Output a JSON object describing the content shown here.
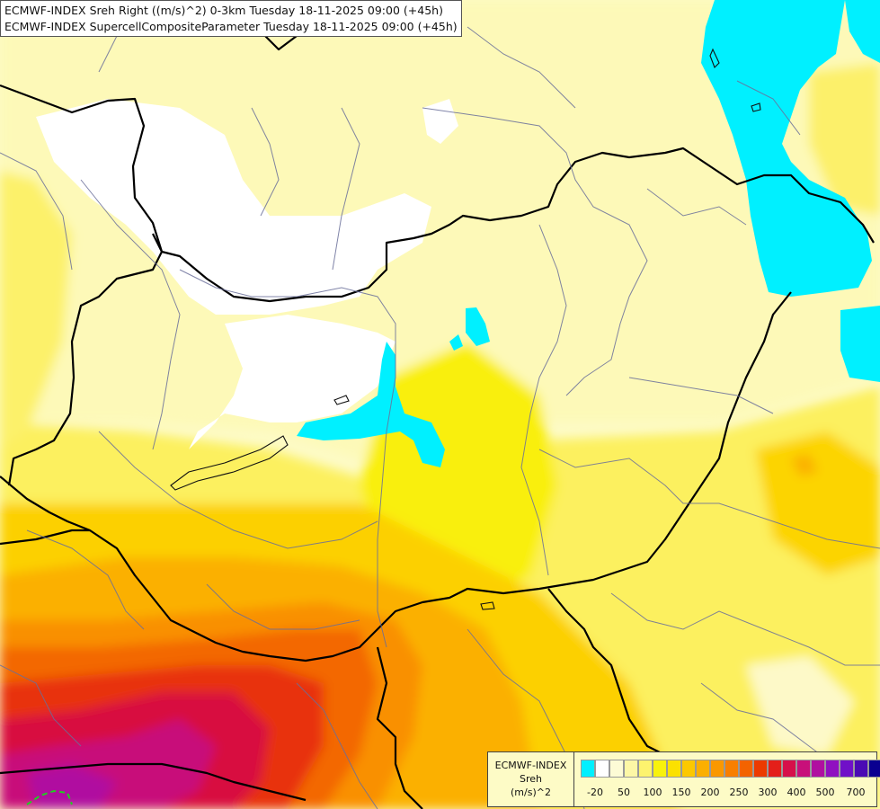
{
  "title": {
    "line1": "ECMWF-INDEX Sreh Right ((m/s)^2) 0-3km Tuesday 18-11-2025 09:00 (+45h)",
    "line2": "ECMWF-INDEX SupercellCompositeParameter Tuesday 18-11-2025 09:00 (+45h)"
  },
  "legend": {
    "source": "ECMWF-INDEX",
    "variable": "Sreh",
    "unit": "(m/s)^2",
    "colors": [
      "#00f0ff",
      "#ffffff",
      "#fdfbd6",
      "#fdf7a6",
      "#fdf36e",
      "#f8f20c",
      "#fbe100",
      "#fcc800",
      "#fbaf00",
      "#fa9800",
      "#f87f00",
      "#f36300",
      "#ec3a00",
      "#e41f1a",
      "#d6104a",
      "#c8107a",
      "#b010a0",
      "#9010c0",
      "#7010c8",
      "#4a0ab4",
      "#0a0090"
    ],
    "ticks": [
      "-20",
      "50",
      "100",
      "150",
      "200",
      "250",
      "300",
      "400",
      "500",
      "700"
    ]
  }
}
